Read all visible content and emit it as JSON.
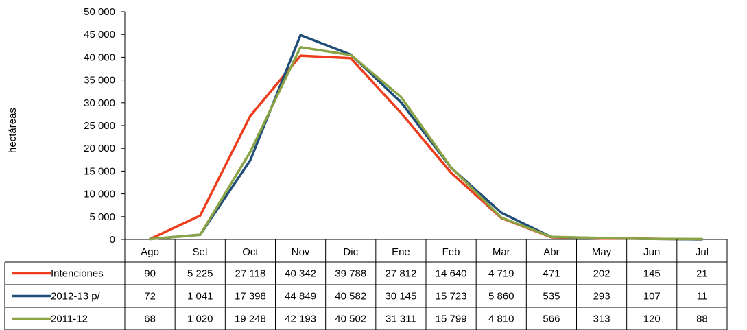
{
  "chart_data": {
    "type": "line",
    "ylabel": "hectáreas",
    "ylim": [
      0,
      50000
    ],
    "yticks": [
      0,
      5000,
      10000,
      15000,
      20000,
      25000,
      30000,
      35000,
      40000,
      45000,
      50000
    ],
    "ytick_labels": [
      "0",
      "5 000",
      "10 000",
      "15 000",
      "20 000",
      "25 000",
      "30 000",
      "35 000",
      "40 000",
      "45 000",
      "50 000"
    ],
    "categories": [
      "Ago",
      "Set",
      "Oct",
      "Nov",
      "Dic",
      "Ene",
      "Feb",
      "Mar",
      "Abr",
      "May",
      "Jun",
      "Jul"
    ],
    "grid": false,
    "legend": "data-table",
    "series": [
      {
        "name": "Intenciones",
        "color": "#ee3d1c",
        "values": [
          90,
          5225,
          27118,
          40342,
          39788,
          27812,
          14640,
          4719,
          471,
          202,
          145,
          21
        ],
        "labels": [
          "90",
          "5 225",
          "27 118",
          "40 342",
          "39 788",
          "27 812",
          "14 640",
          "4 719",
          "471",
          "202",
          "145",
          "21"
        ]
      },
      {
        "name": "2012-13 p/",
        "color": "#1f4e79",
        "values": [
          72,
          1041,
          17398,
          44849,
          40582,
          30145,
          15723,
          5860,
          535,
          293,
          107,
          11
        ],
        "labels": [
          "72",
          "1 041",
          "17 398",
          "44 849",
          "40 582",
          "30 145",
          "15 723",
          "5 860",
          "535",
          "293",
          "107",
          "11"
        ]
      },
      {
        "name": "2011-12",
        "color": "#8aa345",
        "values": [
          68,
          1020,
          19248,
          42193,
          40502,
          31311,
          15799,
          4810,
          566,
          313,
          120,
          88
        ],
        "labels": [
          "68",
          "1 020",
          "19 248",
          "42 193",
          "40 502",
          "31 311",
          "15 799",
          "4 810",
          "566",
          "313",
          "120",
          "88"
        ]
      }
    ]
  }
}
